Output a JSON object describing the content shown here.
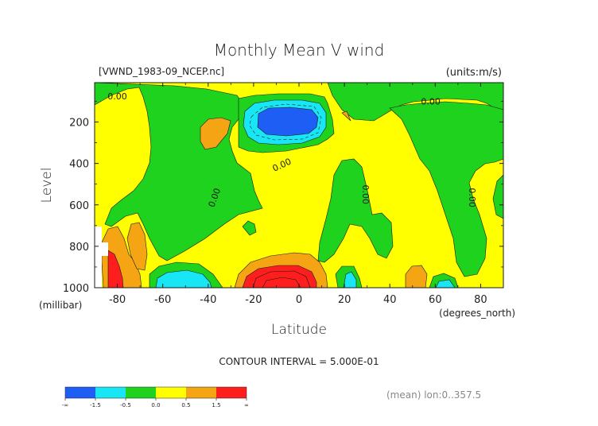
{
  "chart_data": {
    "type": "heatmap",
    "title": "Monthly Mean V wind",
    "dataset_label": "[VWND_1983-09_NCEP.nc]",
    "units_label": "(units:m/s)",
    "xlabel": "Latitude",
    "ylabel": "Level",
    "x_unit_label": "(degrees_north)",
    "y_unit_label": "(millibar)",
    "xlim": [
      -90,
      90
    ],
    "ylim": [
      1000,
      10
    ],
    "x_ticks": [
      -80,
      -60,
      -40,
      -20,
      0,
      20,
      40,
      60,
      80
    ],
    "x_tick_labels": [
      "-80",
      "-60",
      "-40",
      "-20",
      "0",
      "20",
      "40",
      "60",
      "80"
    ],
    "y_ticks": [
      200,
      400,
      600,
      800,
      1000
    ],
    "y_tick_labels": [
      "200",
      "400",
      "600",
      "800",
      "1000"
    ],
    "contour_labels": [
      {
        "text": "0.00",
        "x": -80,
        "y": 90,
        "rotate": 0
      },
      {
        "text": "0.00",
        "x": 58,
        "y": 115,
        "rotate": 0
      },
      {
        "text": "0.00",
        "x": -7,
        "y": 420,
        "rotate": -25
      },
      {
        "text": "0.00",
        "x": -36,
        "y": 570,
        "rotate": -70
      },
      {
        "text": "0.00",
        "x": 28,
        "y": 550,
        "rotate": 90
      },
      {
        "text": "0.00",
        "x": 75,
        "y": 565,
        "rotate": 90
      }
    ],
    "contour_interval_text": "CONTOUR INTERVAL = 5.000E-01",
    "averaging_note": "(mean) lon:0..357.5",
    "colorbar": {
      "colors": [
        "#1e5ef5",
        "#19e6f5",
        "#1ed21e",
        "#ffff00",
        "#f5a514",
        "#ff1e1e"
      ],
      "tick_labels": [
        "-∞",
        "-1.5",
        "-0.5",
        "0.0",
        "0.5",
        "1.5",
        "∞"
      ]
    },
    "regions": [
      {
        "level": "0 to 0.5 m/s",
        "color": "#ffff00",
        "note": "background"
      },
      {
        "level": "-0.5 to 0 m/s",
        "color": "#1ed21e",
        "note": "broad negative areas"
      },
      {
        "level": "< -1.5 m/s",
        "color": "#1e5ef5",
        "center_lat": -10,
        "center_level": 170
      },
      {
        "level": "> 1.5 m/s",
        "color": "#ff1e1e",
        "center_lat": -10,
        "center_level": 990
      },
      {
        "level": "0.5 to 1.5 m/s",
        "color": "#f5a514",
        "center_lat": -40,
        "center_level": 170
      },
      {
        "level": "> 1.5 m/s",
        "color": "#ff1e1e",
        "center_lat": -83,
        "center_level": 950
      }
    ]
  }
}
